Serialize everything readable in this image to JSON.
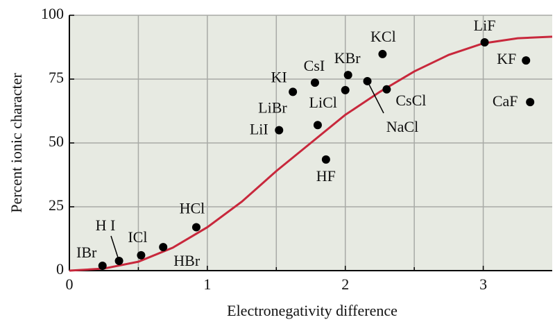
{
  "chart_data": {
    "type": "scatter",
    "xlabel": "Electronegativity difference",
    "ylabel": "Percent ionic character",
    "xlim": [
      0,
      3.5
    ],
    "ylim": [
      0,
      100
    ],
    "xticks": [
      0,
      1,
      2,
      3
    ],
    "xminor": [
      0.5,
      1.5,
      2.5
    ],
    "yticks": [
      0,
      25,
      50,
      75,
      100
    ],
    "grid": true,
    "background": "#e7eae2",
    "series": [
      {
        "labels": [
          "IBr",
          "H I",
          "ICl",
          "HBr",
          "HCl",
          "LiI",
          "KI",
          "LiBr",
          "CsI",
          "HF",
          "LiCl",
          "KBr",
          "NaCl",
          "CsCl",
          "KCl",
          "LiF",
          "KF",
          "CaF"
        ],
        "color": "#000000",
        "x": [
          0.24,
          0.36,
          0.52,
          0.68,
          0.92,
          1.52,
          1.62,
          1.8,
          1.78,
          1.86,
          2.0,
          2.02,
          2.16,
          2.3,
          2.27,
          3.01,
          3.31,
          3.34
        ],
        "values": [
          1.9,
          3.8,
          6,
          9.2,
          17,
          55,
          70,
          57,
          73.6,
          43.5,
          70.7,
          76.6,
          74.2,
          71,
          84.8,
          89.4,
          82.3,
          66
        ]
      },
      {
        "type": "line",
        "color": "#c8283c",
        "x": [
          0,
          0.25,
          0.5,
          0.75,
          1,
          1.25,
          1.5,
          1.75,
          2,
          2.25,
          2.5,
          2.75,
          3,
          3.25,
          3.5
        ],
        "values": [
          0,
          0.8,
          3.5,
          9,
          17,
          27,
          39,
          50,
          61,
          70,
          78,
          84.5,
          89,
          91,
          91.6
        ]
      }
    ]
  }
}
